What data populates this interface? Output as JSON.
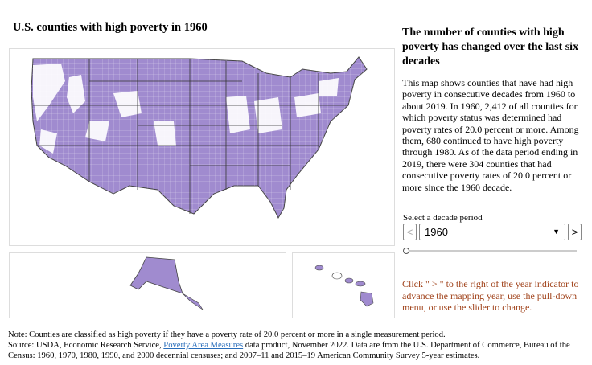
{
  "header": {
    "title": "U.S. counties with high poverty in 1960"
  },
  "sidebar": {
    "heading": "The number of counties with high poverty has changed over the last six decades",
    "body": "This map shows counties that have had high poverty in consecutive decades from 1960 to about 2019. In 1960, 2,412 of all counties for which poverty status was determined had poverty rates of 20.0 percent or more. Among them, 680 continued to have high poverty through 1980. As of the data period ending in 2019, there were 304 counties that had consecutive poverty rates of 20.0 percent or more since the 1960 decade.",
    "control_label": "Select a decade period",
    "selected": "1960",
    "prev_button": "<",
    "next_button": ">",
    "instructions": "Click \" > \" to the right of the year indicator to advance the mapping year, use the pull-down menu, or use the slider to change."
  },
  "footer": {
    "note": "Note: Counties are classified as high poverty if they have a poverty rate of 20.0 percent or more in a single measurement period.",
    "source_prefix": "Source: USDA, Economic Research Service,",
    "source_link": "Poverty Area Measures",
    "source_suffix": "data product, November 2022. Data are from the U.S. Department of Commerce, Bureau of the Census: 1960, 1970, 1980, 1990, and 2000 decennial censuses; and 2007–11 and 2015–19 American Community Survey 5-year estimates."
  }
}
